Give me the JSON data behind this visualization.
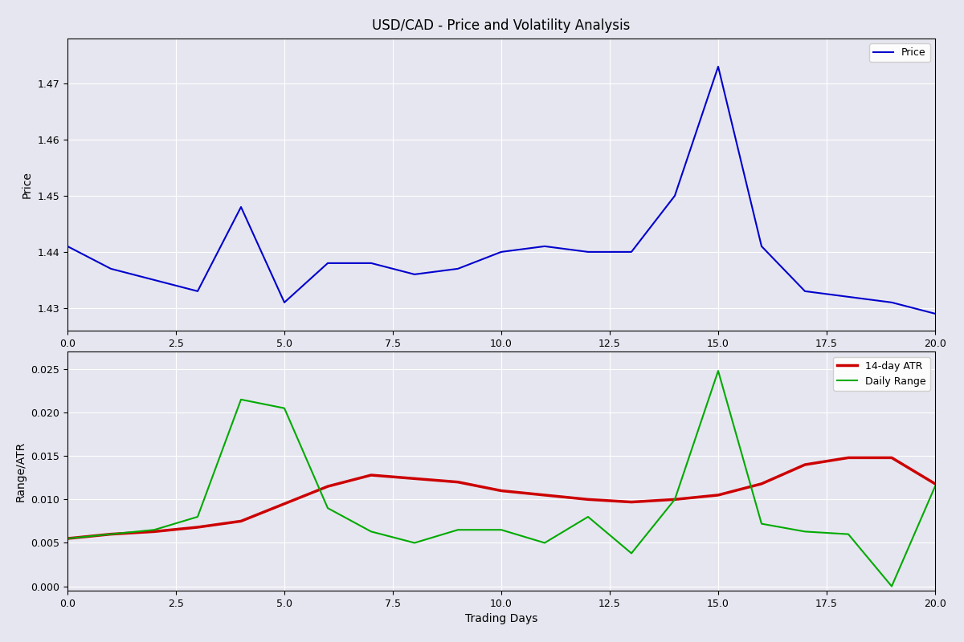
{
  "title": "USD/CAD - Price and Volatility Analysis",
  "price_days": [
    0,
    1,
    2,
    3,
    4,
    5,
    6,
    7,
    8,
    9,
    10,
    11,
    12,
    13,
    14,
    15,
    16,
    17,
    18,
    19,
    20
  ],
  "price_values": [
    1.441,
    1.437,
    1.435,
    1.433,
    1.448,
    1.431,
    1.438,
    1.438,
    1.436,
    1.437,
    1.44,
    1.441,
    1.44,
    1.44,
    1.45,
    1.473,
    1.441,
    1.433,
    1.432,
    1.431,
    1.429
  ],
  "atr_days": [
    0,
    1,
    2,
    3,
    4,
    5,
    6,
    7,
    8,
    9,
    10,
    11,
    12,
    13,
    14,
    15,
    16,
    17,
    18,
    19,
    20
  ],
  "atr_values": [
    0.0055,
    0.006,
    0.0063,
    0.0068,
    0.0075,
    0.0095,
    0.0115,
    0.0128,
    0.0124,
    0.012,
    0.011,
    0.0105,
    0.01,
    0.0097,
    0.01,
    0.0105,
    0.0118,
    0.014,
    0.0148,
    0.0148,
    0.0118
  ],
  "daily_range_days": [
    0,
    1,
    2,
    3,
    4,
    5,
    6,
    7,
    8,
    9,
    10,
    11,
    12,
    13,
    14,
    15,
    16,
    17,
    18,
    19,
    20
  ],
  "daily_range_values": [
    0.0055,
    0.006,
    0.0065,
    0.008,
    0.0215,
    0.0205,
    0.009,
    0.0063,
    0.005,
    0.0065,
    0.0065,
    0.005,
    0.008,
    0.0038,
    0.01,
    0.0248,
    0.0072,
    0.0063,
    0.006,
    0.0,
    0.0115
  ],
  "price_color": "#0000cc",
  "atr_color": "#cc0000",
  "daily_range_color": "#00aa00",
  "bg_color": "#e6e6f0",
  "fig_color": "#e6e6f0",
  "price_ylabel": "Price",
  "volatility_ylabel": "Range/ATR",
  "xlabel": "Trading Days",
  "atr_label": "14-day ATR",
  "daily_range_label": "Daily Range",
  "price_label": "Price",
  "ylim_price": [
    1.426,
    1.478
  ],
  "ylim_volatility": [
    -0.0005,
    0.027
  ],
  "price_yticks": [
    1.43,
    1.44,
    1.45,
    1.46,
    1.47
  ],
  "vol_yticks": [
    0.0,
    0.005,
    0.01,
    0.015,
    0.02,
    0.025
  ],
  "xlim": [
    0,
    20
  ],
  "xticks": [
    0.0,
    2.5,
    5.0,
    7.5,
    10.0,
    12.5,
    15.0,
    17.5,
    20.0
  ]
}
